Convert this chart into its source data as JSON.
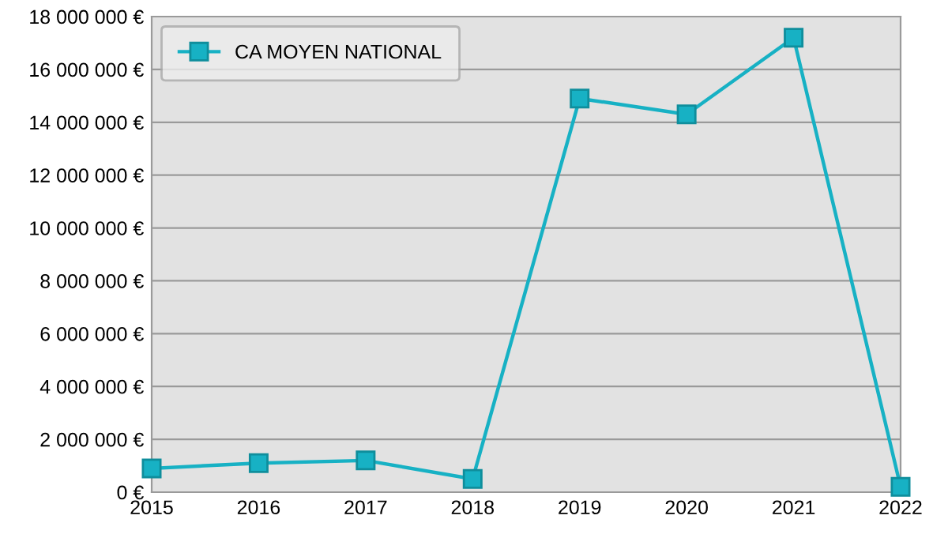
{
  "chart_data": {
    "type": "line",
    "x": [
      2015,
      2016,
      2017,
      2018,
      2019,
      2020,
      2021,
      2022
    ],
    "series": [
      {
        "name": "CA MOYEN NATIONAL",
        "color": "#17b1c4",
        "values": [
          900000,
          1100000,
          1200000,
          500000,
          14900000,
          14300000,
          17200000,
          200000
        ]
      }
    ],
    "xlim": [
      2015,
      2022
    ],
    "xticks": [
      2015,
      2016,
      2017,
      2018,
      2019,
      2020,
      2021,
      2022
    ],
    "ylim": [
      0,
      18000000
    ],
    "yticks": [
      {
        "value": 0,
        "label": "0 €"
      },
      {
        "value": 2000000,
        "label": "2 000 000 €"
      },
      {
        "value": 4000000,
        "label": "4 000 000 €"
      },
      {
        "value": 6000000,
        "label": "6 000 000 €"
      },
      {
        "value": 8000000,
        "label": "8 000 000 €"
      },
      {
        "value": 10000000,
        "label": "10 000 000 €"
      },
      {
        "value": 12000000,
        "label": "12 000 000 €"
      },
      {
        "value": 14000000,
        "label": "14 000 000 €"
      },
      {
        "value": 16000000,
        "label": "16 000 000 €"
      },
      {
        "value": 18000000,
        "label": "18 000 000 €"
      }
    ],
    "grid": "y",
    "legend": "top left",
    "marker": "square",
    "line_style": "solid"
  }
}
